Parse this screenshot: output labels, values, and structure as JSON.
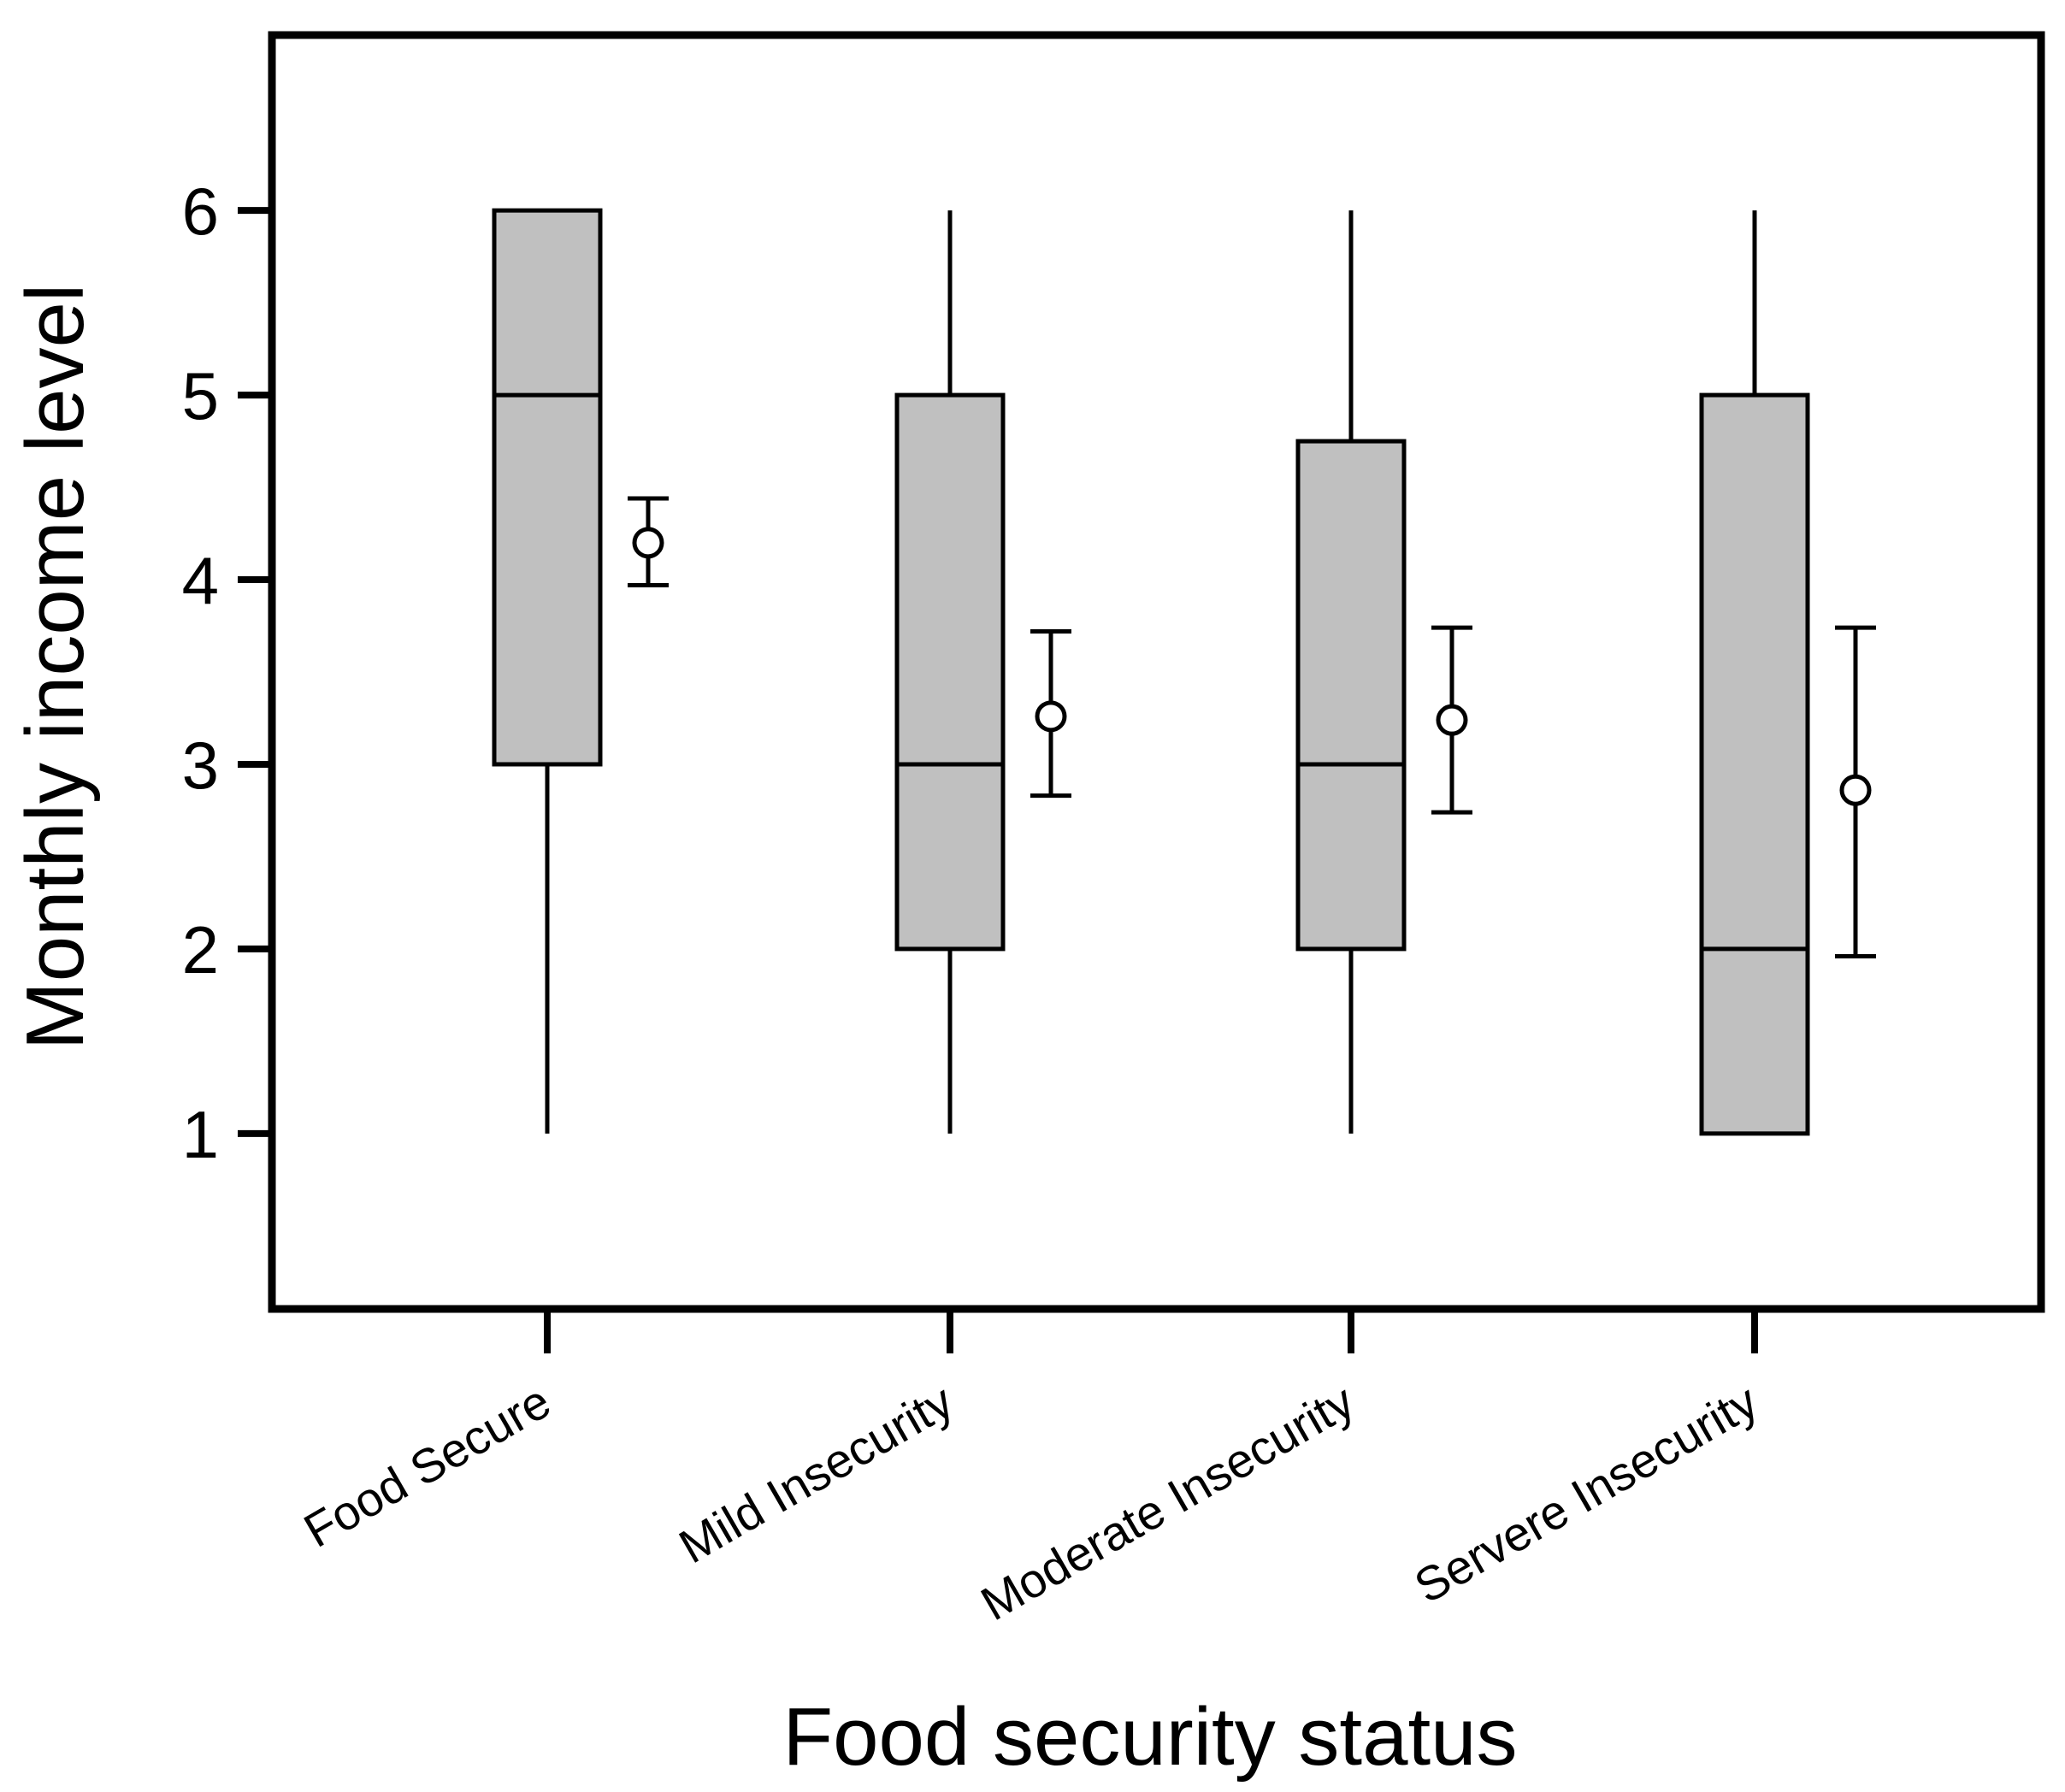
{
  "chart_data": {
    "type": "boxplot",
    "xlabel": "Food security status",
    "ylabel": "Monthly income level",
    "categories": [
      "Food Secure",
      "Mild Insecurity",
      "Moderate Insecurity",
      "Servere Insecurity"
    ],
    "y_ticks": [
      1,
      2,
      3,
      4,
      5,
      6
    ],
    "ylim": [
      0.05,
      6.95
    ],
    "boxes": [
      {
        "category": "Food Secure",
        "whisker_low": 1,
        "q1": 3,
        "median": 5,
        "q3": 6,
        "whisker_high": 6
      },
      {
        "category": "Mild Insecurity",
        "whisker_low": 1,
        "q1": 2,
        "median": 3,
        "q3": 5,
        "whisker_high": 6
      },
      {
        "category": "Moderate Insecurity",
        "whisker_low": 1,
        "q1": 2,
        "median": 3,
        "q3": 4.75,
        "whisker_high": 6
      },
      {
        "category": "Servere Insecurity",
        "whisker_low": 1,
        "q1": 1,
        "median": 2,
        "q3": 5,
        "whisker_high": 6
      }
    ],
    "means": [
      {
        "category": "Food Secure",
        "mean": 4.2,
        "ci_low": 3.97,
        "ci_high": 4.44
      },
      {
        "category": "Mild Insecurity",
        "mean": 3.26,
        "ci_low": 2.83,
        "ci_high": 3.72
      },
      {
        "category": "Moderate Insecurity",
        "mean": 3.24,
        "ci_low": 2.74,
        "ci_high": 3.74
      },
      {
        "category": "Servere Insecurity",
        "mean": 2.86,
        "ci_low": 1.96,
        "ci_high": 3.74
      }
    ],
    "grid": false,
    "colors": {
      "box_fill": "#c0c0c0",
      "stroke": "#000000",
      "mean_marker_fill": "#ffffff"
    }
  }
}
